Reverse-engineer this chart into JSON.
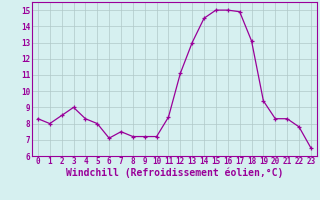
{
  "x": [
    0,
    1,
    2,
    3,
    4,
    5,
    6,
    7,
    8,
    9,
    10,
    11,
    12,
    13,
    14,
    15,
    16,
    17,
    18,
    19,
    20,
    21,
    22,
    23
  ],
  "y": [
    8.3,
    8.0,
    8.5,
    9.0,
    8.3,
    8.0,
    7.1,
    7.5,
    7.2,
    7.2,
    7.2,
    8.4,
    11.1,
    13.0,
    14.5,
    15.0,
    15.0,
    14.9,
    13.1,
    9.4,
    8.3,
    8.3,
    7.8,
    6.5
  ],
  "line_color": "#990099",
  "marker": "+",
  "bg_color": "#d6f0f0",
  "grid_color": "#b0c8c8",
  "axis_color": "#990099",
  "xlabel": "Windchill (Refroidissement éolien,°C)",
  "ylim": [
    6,
    15.5
  ],
  "xlim": [
    -0.5,
    23.5
  ],
  "yticks": [
    6,
    7,
    8,
    9,
    10,
    11,
    12,
    13,
    14,
    15
  ],
  "xticks": [
    0,
    1,
    2,
    3,
    4,
    5,
    6,
    7,
    8,
    9,
    10,
    11,
    12,
    13,
    14,
    15,
    16,
    17,
    18,
    19,
    20,
    21,
    22,
    23
  ],
  "tick_fontsize": 5.5,
  "xlabel_fontsize": 7.0
}
